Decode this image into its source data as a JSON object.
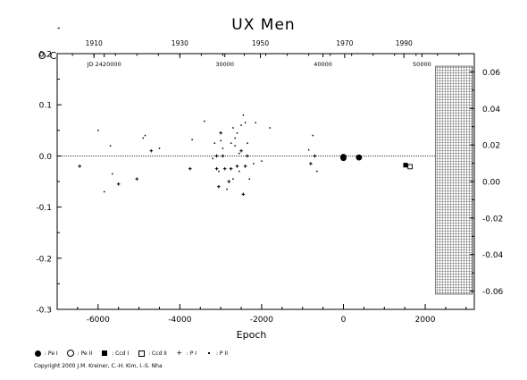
{
  "title": "UX Men",
  "copyright": "Copyright 2000 J.M. Kreiner, C.-H. Kim, I.-S. Nha",
  "legend": [
    {
      "symbol": "pe1",
      "label": ": Pe I"
    },
    {
      "symbol": "pe2",
      "label": ": Pe II"
    },
    {
      "symbol": "ccd1",
      "label": ": Ccd I"
    },
    {
      "symbol": "ccd2",
      "label": ": Ccd II"
    },
    {
      "symbol": "p1",
      "label": ": P I"
    },
    {
      "symbol": "p2",
      "label": ": P II"
    }
  ],
  "chart_data": {
    "type": "scatter",
    "title": "UX Men",
    "xlabel": "Epoch",
    "ylabel": "O-C",
    "xlim": [
      -7000,
      3200
    ],
    "ylim": [
      -0.3,
      0.2
    ],
    "right_ylim": [
      -0.07,
      0.07
    ],
    "xticks": [
      "-6000",
      "-4000",
      "-2000",
      "0",
      "2000"
    ],
    "yticks": [
      "-0.3",
      "-0.2",
      "-0.1",
      "0.0",
      "0.1",
      "0.2"
    ],
    "right_yticks": [
      "-0.06",
      "-0.04",
      "-0.02",
      "0.00",
      "0.02",
      "0.04",
      "0.06"
    ],
    "top_year_ticks": [
      {
        "label": "1910",
        "epoch": -6100
      },
      {
        "label": "1930",
        "epoch": -4000
      },
      {
        "label": "1950",
        "epoch": -2030
      },
      {
        "label": "1970",
        "epoch": 30
      },
      {
        "label": "1990",
        "epoch": 1480
      }
    ],
    "top_jd_labels": [
      {
        "label": "JD 2420000",
        "epoch": -5850
      },
      {
        "label": "30000",
        "epoch": -2900
      },
      {
        "label": "40000",
        "epoch": -500
      },
      {
        "label": "50000",
        "epoch": 1920
      }
    ],
    "shaded_region": [
      2250,
      3200
    ],
    "series": [
      {
        "name": "Pe I",
        "marker": "filled-circle",
        "points": [
          [
            0,
            -0.002
          ],
          [
            0,
            -0.004
          ],
          [
            380,
            -0.003
          ]
        ]
      },
      {
        "name": "Ccd I",
        "marker": "filled-square",
        "points": [
          [
            1520,
            -0.018
          ]
        ]
      },
      {
        "name": "Ccd II",
        "marker": "open-square",
        "points": [
          [
            1630,
            -0.021
          ]
        ]
      },
      {
        "name": "P I",
        "marker": "plus",
        "points": [
          [
            -6450,
            -0.02
          ],
          [
            -5500,
            -0.055
          ],
          [
            -5050,
            -0.045
          ],
          [
            -4700,
            0.01
          ],
          [
            -3750,
            -0.025
          ],
          [
            -3100,
            0.0
          ],
          [
            -3100,
            -0.025
          ],
          [
            -3050,
            -0.06
          ],
          [
            -3000,
            0.045
          ],
          [
            -2950,
            0.0
          ],
          [
            -2900,
            -0.025
          ],
          [
            -2800,
            -0.05
          ],
          [
            -2750,
            -0.025
          ],
          [
            -2600,
            -0.02
          ],
          [
            -2500,
            0.01
          ],
          [
            -2450,
            -0.075
          ],
          [
            -2400,
            -0.02
          ],
          [
            -2350,
            0.0
          ],
          [
            -800,
            -0.015
          ],
          [
            -700,
            0.0
          ]
        ]
      },
      {
        "name": "P II",
        "marker": "dot",
        "points": [
          [
            -6000,
            0.05
          ],
          [
            -5850,
            -0.07
          ],
          [
            -5700,
            0.02
          ],
          [
            -5650,
            -0.035
          ],
          [
            -4900,
            0.035
          ],
          [
            -4850,
            0.04
          ],
          [
            -4500,
            0.015
          ],
          [
            -3700,
            0.032
          ],
          [
            -3400,
            0.068
          ],
          [
            -3200,
            -0.005
          ],
          [
            -3150,
            0.025
          ],
          [
            -3000,
            0.03
          ],
          [
            -2950,
            0.015
          ],
          [
            -2850,
            -0.065
          ],
          [
            -2750,
            0.025
          ],
          [
            -2700,
            0.055
          ],
          [
            -2650,
            0.035
          ],
          [
            -2600,
            0.045
          ],
          [
            -2550,
            0.005
          ],
          [
            -2500,
            0.06
          ],
          [
            -2450,
            0.08
          ],
          [
            -2400,
            0.065
          ],
          [
            -2350,
            0.025
          ],
          [
            -2200,
            -0.015
          ],
          [
            -2150,
            0.065
          ],
          [
            -2000,
            -0.01
          ],
          [
            -1800,
            0.055
          ],
          [
            -850,
            0.012
          ],
          [
            -750,
            0.04
          ],
          [
            -650,
            -0.03
          ],
          [
            -3050,
            -0.03
          ],
          [
            -2700,
            -0.045
          ],
          [
            -2550,
            -0.03
          ],
          [
            -2300,
            -0.045
          ],
          [
            -2650,
            0.02
          ]
        ]
      }
    ]
  }
}
